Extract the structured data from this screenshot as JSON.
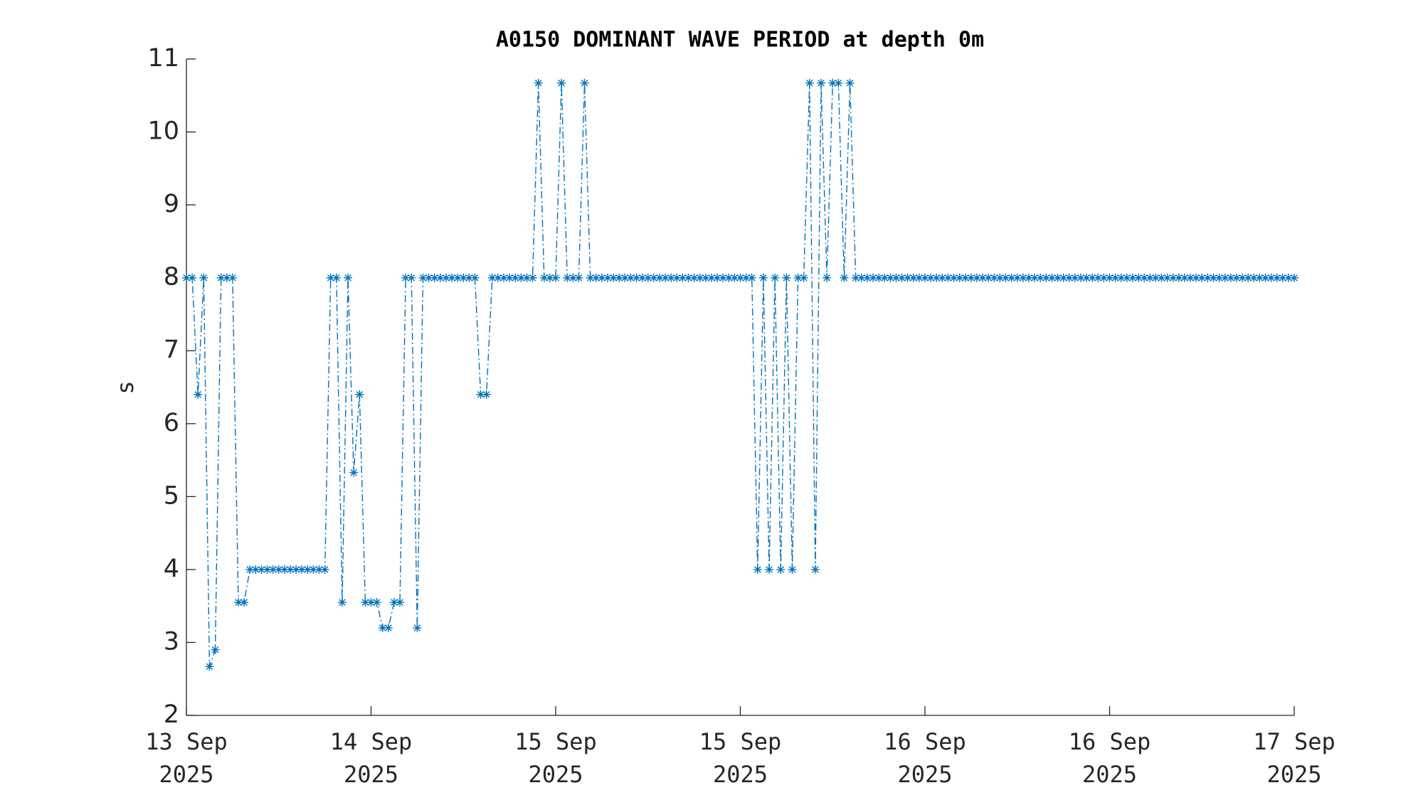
{
  "chart_data": {
    "type": "line",
    "title": "A0150 DOMINANT WAVE PERIOD at depth 0m",
    "ylabel": "s",
    "categories": [
      "13 Sep\n2025",
      null,
      null,
      null,
      null,
      null,
      null,
      null,
      null,
      null,
      null,
      null,
      null,
      null,
      null,
      null,
      null,
      null,
      null,
      null,
      null,
      null,
      null,
      null,
      null,
      null,
      null,
      null,
      null,
      null,
      null,
      null,
      "14 Sep\n2025",
      null,
      null,
      null,
      null,
      null,
      null,
      null,
      null,
      null,
      null,
      null,
      null,
      null,
      null,
      null,
      null,
      null,
      null,
      null,
      null,
      null,
      null,
      null,
      null,
      null,
      null,
      null,
      null,
      null,
      null,
      null,
      "15 Sep\n2025",
      null,
      null,
      null,
      null,
      null,
      null,
      null,
      null,
      null,
      null,
      null,
      null,
      null,
      null,
      null,
      null,
      null,
      null,
      null,
      null,
      null,
      null,
      null,
      null,
      null,
      null,
      null,
      null,
      null,
      null,
      null,
      "15 Sep\n2025",
      null,
      null,
      null,
      null,
      null,
      null,
      null,
      null,
      null,
      null,
      null,
      null,
      null,
      null,
      null,
      null,
      null,
      null,
      null,
      null,
      null,
      null,
      null,
      null,
      null,
      null,
      null,
      null,
      null,
      null,
      null,
      "16 Sep\n2025",
      null,
      null,
      null,
      null,
      null,
      null,
      null,
      null,
      null,
      null,
      null,
      null,
      null,
      null,
      null,
      null,
      null,
      null,
      null,
      null,
      null,
      null,
      null,
      null,
      null,
      null,
      null,
      null,
      null,
      null,
      null,
      "16 Sep\n2025",
      null,
      null,
      null,
      null,
      null,
      null,
      null,
      null,
      null,
      null,
      null,
      null,
      null,
      null,
      null,
      null,
      null,
      null,
      null,
      null,
      null,
      null,
      null,
      null,
      null,
      null,
      null,
      null,
      null,
      null,
      null,
      "17 Sep\n2025"
    ],
    "values": [
      8,
      8,
      6.4,
      8,
      2.67,
      2.9,
      8,
      8,
      8,
      3.55,
      3.55,
      4,
      4,
      4,
      4,
      4,
      4,
      4,
      4,
      4,
      4,
      4,
      4,
      4,
      4,
      8,
      8,
      3.55,
      8,
      5.33,
      6.4,
      3.55,
      3.55,
      3.55,
      3.2,
      3.2,
      3.55,
      3.55,
      8,
      8,
      3.2,
      8,
      8,
      8,
      8,
      8,
      8,
      8,
      8,
      8,
      8,
      6.4,
      6.4,
      8,
      8,
      8,
      8,
      8,
      8,
      8,
      8,
      10.67,
      8,
      8,
      8,
      10.67,
      8,
      8,
      8,
      10.67,
      8,
      8,
      8,
      8,
      8,
      8,
      8,
      8,
      8,
      8,
      8,
      8,
      8,
      8,
      8,
      8,
      8,
      8,
      8,
      8,
      8,
      8,
      8,
      8,
      8,
      8,
      8,
      8,
      8,
      4,
      8,
      4,
      8,
      4,
      8,
      4,
      8,
      8,
      10.67,
      4,
      10.67,
      8,
      10.67,
      10.67,
      8,
      10.67,
      8,
      8,
      8,
      8,
      8,
      8,
      8,
      8,
      8,
      8,
      8,
      8,
      8,
      8,
      8,
      8,
      8,
      8,
      8,
      8,
      8,
      8,
      8,
      8,
      8,
      8,
      8,
      8,
      8,
      8,
      8,
      8,
      8,
      8,
      8,
      8,
      8,
      8,
      8,
      8,
      8,
      8,
      8,
      8,
      8,
      8,
      8,
      8,
      8,
      8,
      8,
      8,
      8,
      8,
      8,
      8,
      8,
      8,
      8,
      8,
      8,
      8,
      8,
      8,
      8,
      8,
      8,
      8,
      8,
      8,
      8,
      8,
      8,
      8,
      8,
      8,
      8
    ],
    "color": "#0072bd",
    "line_style": "dash-dot",
    "marker": "asterisk",
    "ylim": [
      2,
      11
    ],
    "yticks": [
      2,
      3,
      4,
      5,
      6,
      7,
      8,
      9,
      10,
      11
    ],
    "grid": false
  }
}
